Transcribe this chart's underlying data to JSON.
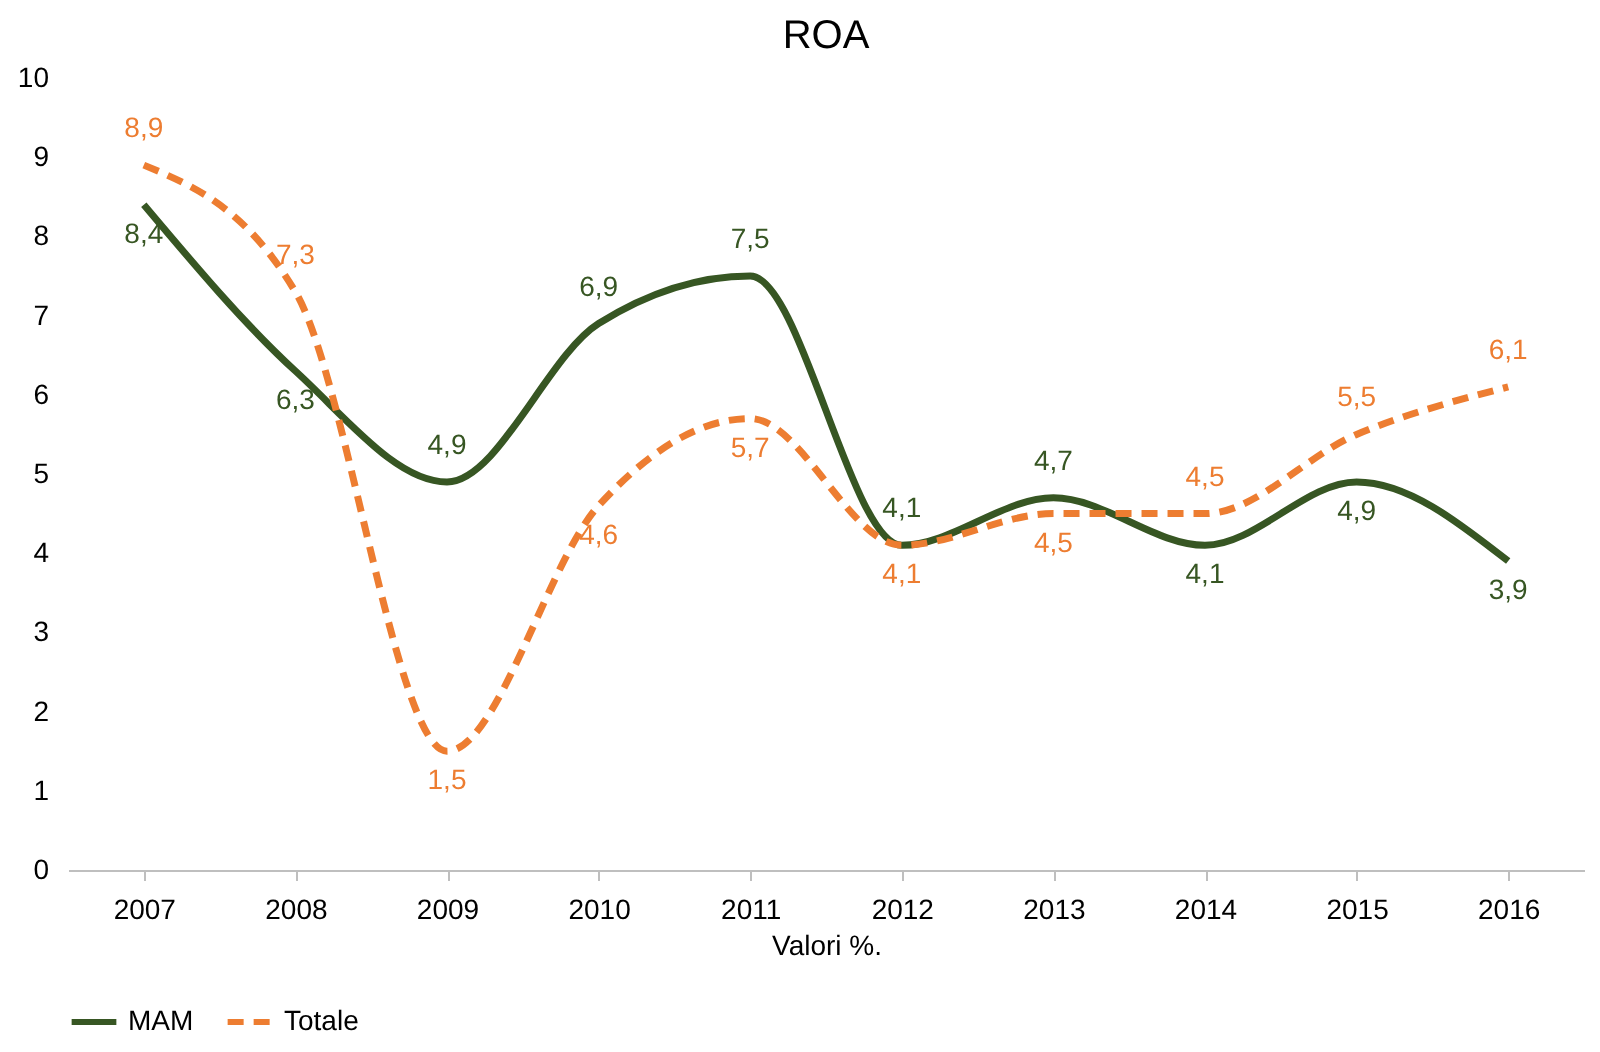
{
  "chart_data": {
    "type": "line",
    "title": "ROA",
    "xlabel": "Valori %.",
    "categories": [
      "2007",
      "2008",
      "2009",
      "2010",
      "2011",
      "2012",
      "2013",
      "2014",
      "2015",
      "2016"
    ],
    "series": [
      {
        "name": "MAM",
        "color": "#375623",
        "line_style": "solid",
        "values": [
          8.4,
          6.3,
          4.9,
          6.9,
          7.5,
          4.1,
          4.7,
          4.1,
          4.9,
          3.9
        ],
        "value_labels": [
          "8,4",
          "6,3",
          "4,9",
          "6,9",
          "7,5",
          "4,1",
          "4,7",
          "4,1",
          "4,9",
          "3,9"
        ]
      },
      {
        "name": "Totale",
        "color": "#ed7d31",
        "line_style": "dashed",
        "values": [
          8.9,
          7.3,
          1.5,
          4.6,
          5.7,
          4.1,
          4.5,
          4.5,
          5.5,
          6.1
        ],
        "value_labels": [
          "8,9",
          "7,3",
          "1,5",
          "4,6",
          "5,7",
          "4,1",
          "4,5",
          "4,5",
          "5,5",
          "6,1"
        ]
      }
    ],
    "ylim": [
      0,
      10
    ],
    "yticks": [
      0,
      1,
      2,
      3,
      4,
      5,
      6,
      7,
      8,
      9,
      10
    ],
    "grid": false,
    "legend": "bottom",
    "marker": "none"
  }
}
